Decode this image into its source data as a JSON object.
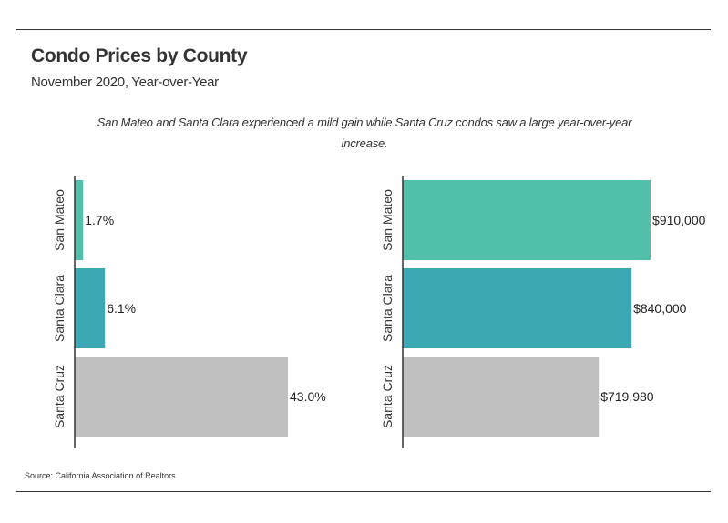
{
  "header": {
    "title": "Condo Prices by County",
    "subtitle": "November 2020, Year-over-Year",
    "note": "San Mateo and Santa Clara experienced a mild gain while Santa Cruz condos saw a large year-over-year increase."
  },
  "footer": {
    "source": "Source:  California Association of Realtors"
  },
  "chart_data": [
    {
      "type": "bar",
      "orientation": "horizontal",
      "categories": [
        "San Mateo",
        "Santa Clara",
        "Santa Cruz"
      ],
      "values": [
        1.7,
        6.1,
        43.0
      ],
      "labels": [
        "1.7%",
        "6.1%",
        "43.0%"
      ],
      "colors": [
        "#52bfaa",
        "#3ba8b3",
        "#c0c0c0"
      ],
      "xlim": [
        0,
        50
      ],
      "grid": false
    },
    {
      "type": "bar",
      "orientation": "horizontal",
      "categories": [
        "San Mateo",
        "Santa Clara",
        "Santa Cruz"
      ],
      "values": [
        910000,
        840000,
        719980
      ],
      "labels": [
        "$910,000",
        "$840,000",
        "$719,980"
      ],
      "colors": [
        "#52bfaa",
        "#3ba8b3",
        "#c0c0c0"
      ],
      "xlim": [
        0,
        1000000
      ],
      "grid": false
    }
  ]
}
